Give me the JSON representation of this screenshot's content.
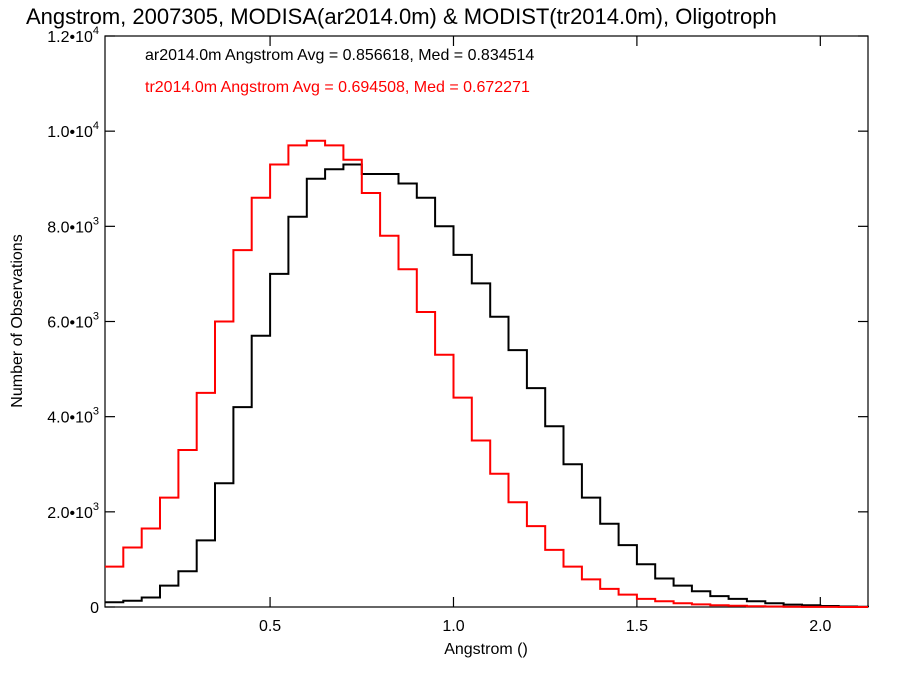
{
  "chart_data": {
    "type": "line",
    "title": "Angstrom, 2007305, MODISA(ar2014.0m) & MODIST(tr2014.0m), Oligotroph",
    "xlabel": "Angstrom ()",
    "ylabel": "Number of Observations",
    "xlim": [
      0.05,
      2.13
    ],
    "ylim": [
      0,
      12000
    ],
    "x_ticks": [
      {
        "value": 0.5,
        "label": "0.5"
      },
      {
        "value": 1.0,
        "label": "1.0"
      },
      {
        "value": 1.5,
        "label": "1.5"
      },
      {
        "value": 2.0,
        "label": "2.0"
      }
    ],
    "y_ticks": [
      {
        "value": 0,
        "label": "0",
        "exp": ""
      },
      {
        "value": 2000,
        "label": "2.0•10",
        "exp": "3"
      },
      {
        "value": 4000,
        "label": "4.0•10",
        "exp": "3"
      },
      {
        "value": 6000,
        "label": "6.0•10",
        "exp": "3"
      },
      {
        "value": 8000,
        "label": "8.0•10",
        "exp": "3"
      },
      {
        "value": 10000,
        "label": "1.0•10",
        "exp": "4"
      },
      {
        "value": 12000,
        "label": "1.2•10",
        "exp": "4"
      }
    ],
    "grid": false,
    "series": [
      {
        "name": "ar2014.0m",
        "color": "#000000",
        "annotation": "ar2014.0m Angstrom Avg = 0.856618, Med = 0.834514",
        "x": [
          0.05,
          0.1,
          0.15,
          0.2,
          0.25,
          0.3,
          0.35,
          0.4,
          0.45,
          0.5,
          0.55,
          0.6,
          0.65,
          0.7,
          0.75,
          0.8,
          0.85,
          0.9,
          0.95,
          1.0,
          1.05,
          1.1,
          1.15,
          1.2,
          1.25,
          1.3,
          1.35,
          1.4,
          1.45,
          1.5,
          1.55,
          1.6,
          1.65,
          1.7,
          1.75,
          1.8,
          1.85,
          1.9,
          1.95,
          2.0,
          2.05,
          2.1,
          2.13
        ],
        "y": [
          100,
          130,
          200,
          450,
          750,
          1400,
          2600,
          4200,
          5700,
          7000,
          8200,
          9000,
          9200,
          9300,
          9100,
          9100,
          8900,
          8600,
          8000,
          7400,
          6800,
          6100,
          5400,
          4600,
          3800,
          3000,
          2300,
          1750,
          1300,
          900,
          600,
          450,
          330,
          230,
          170,
          120,
          80,
          50,
          35,
          20,
          10,
          5,
          0
        ]
      },
      {
        "name": "tr2014.0m",
        "color": "#ff0000",
        "annotation": "tr2014.0m Angstrom Avg = 0.694508, Med = 0.672271",
        "x": [
          0.05,
          0.1,
          0.15,
          0.2,
          0.25,
          0.3,
          0.35,
          0.4,
          0.45,
          0.5,
          0.55,
          0.6,
          0.65,
          0.7,
          0.75,
          0.8,
          0.85,
          0.9,
          0.95,
          1.0,
          1.05,
          1.1,
          1.15,
          1.2,
          1.25,
          1.3,
          1.35,
          1.4,
          1.45,
          1.5,
          1.55,
          1.6,
          1.65,
          1.7,
          1.75,
          1.8,
          1.85,
          1.9,
          1.95,
          2.0,
          2.05,
          2.1,
          2.13
        ],
        "y": [
          850,
          1250,
          1650,
          2300,
          3300,
          4500,
          6000,
          7500,
          8600,
          9300,
          9700,
          9800,
          9700,
          9400,
          8700,
          7800,
          7100,
          6200,
          5300,
          4400,
          3500,
          2800,
          2200,
          1700,
          1200,
          850,
          580,
          380,
          260,
          170,
          120,
          80,
          55,
          35,
          25,
          15,
          10,
          5,
          3,
          2,
          1,
          0,
          0
        ]
      }
    ]
  }
}
